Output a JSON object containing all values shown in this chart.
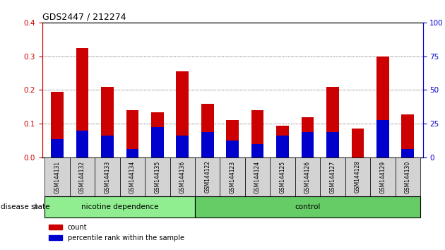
{
  "title": "GDS2447 / 212274",
  "categories": [
    "GSM144131",
    "GSM144132",
    "GSM144133",
    "GSM144134",
    "GSM144135",
    "GSM144136",
    "GSM144122",
    "GSM144123",
    "GSM144124",
    "GSM144125",
    "GSM144126",
    "GSM144127",
    "GSM144128",
    "GSM144129",
    "GSM144130"
  ],
  "count_values": [
    0.195,
    0.325,
    0.21,
    0.14,
    0.135,
    0.255,
    0.16,
    0.11,
    0.14,
    0.095,
    0.12,
    0.21,
    0.085,
    0.3,
    0.128
  ],
  "percentile_values": [
    0.055,
    0.08,
    0.065,
    0.025,
    0.09,
    0.065,
    0.075,
    0.05,
    0.04,
    0.065,
    0.075,
    0.075,
    0.0,
    0.11,
    0.025
  ],
  "count_color": "#cc0000",
  "percentile_color": "#0000cc",
  "ylim_left": [
    0,
    0.4
  ],
  "ylim_right": [
    0,
    100
  ],
  "yticks_left": [
    0,
    0.1,
    0.2,
    0.3,
    0.4
  ],
  "yticks_right": [
    0,
    25,
    50,
    75,
    100
  ],
  "group1_label": "nicotine dependence",
  "group1_count": 6,
  "group2_label": "control",
  "group2_count": 9,
  "group_label": "disease state",
  "group1_color": "#90ee90",
  "group2_color": "#66cc66",
  "tick_bg_color": "#d3d3d3",
  "bar_width": 0.5,
  "title_color": "#000000",
  "left_tick_color": "#cc0000",
  "right_tick_color": "#0000cc"
}
